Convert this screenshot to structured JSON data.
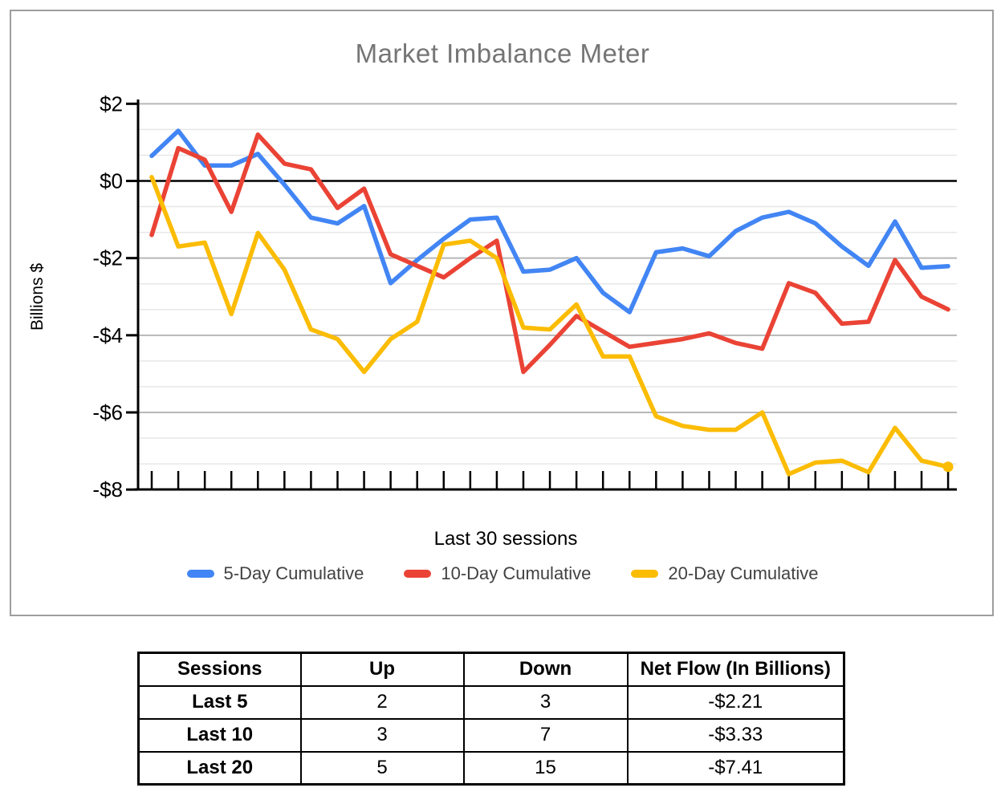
{
  "chart": {
    "title": "Market Imbalance Meter",
    "ylabel": "Billions $",
    "xlabel": "Last 30 sessions"
  },
  "chart_data": {
    "type": "line",
    "title": "Market Imbalance Meter",
    "xlabel": "Last 30 sessions",
    "ylabel": "Billions $",
    "ylim": [
      -8,
      2
    ],
    "y_ticks": [
      {
        "label": "$2",
        "value": 2
      },
      {
        "label": "$0",
        "value": 0
      },
      {
        "label": "-$2",
        "value": -2
      },
      {
        "label": "-$4",
        "value": -4
      },
      {
        "label": "-$6",
        "value": -6
      },
      {
        "label": "-$8",
        "value": -8
      }
    ],
    "grid": {
      "major_step": 2,
      "minor_step": 0.6667,
      "major_color": "#b7b7b7",
      "minor_color": "#e7e7e7",
      "zero_line_color": "#000000"
    },
    "legend_position": "bottom",
    "x_point_count": 31,
    "series": [
      {
        "name": "5-Day Cumulative",
        "color": "#4285F4",
        "end_dot": false,
        "values": [
          0.65,
          1.3,
          0.4,
          0.4,
          0.7,
          -0.1,
          -0.95,
          -1.1,
          -0.65,
          -2.65,
          -2.05,
          -1.5,
          -1.0,
          -0.95,
          -2.35,
          -2.3,
          -2.0,
          -2.9,
          -3.4,
          -1.85,
          -1.75,
          -1.95,
          -1.3,
          -0.95,
          -0.8,
          -1.1,
          -1.7,
          -2.2,
          -1.05,
          -2.25,
          -2.21
        ]
      },
      {
        "name": "10-Day Cumulative",
        "color": "#EA4335",
        "end_dot": false,
        "values": [
          -1.4,
          0.85,
          0.55,
          -0.8,
          1.2,
          0.45,
          0.3,
          -0.7,
          -0.2,
          -1.9,
          -2.2,
          -2.5,
          -2.0,
          -1.55,
          -4.95,
          -4.25,
          -3.5,
          -3.9,
          -4.3,
          -4.2,
          -4.1,
          -3.95,
          -4.2,
          -4.35,
          -2.65,
          -2.9,
          -3.7,
          -3.65,
          -2.05,
          -3.0,
          -3.33
        ]
      },
      {
        "name": "20-Day Cumulative",
        "color": "#FBBC04",
        "end_dot": true,
        "values": [
          0.1,
          -1.7,
          -1.6,
          -3.45,
          -1.35,
          -2.3,
          -3.85,
          -4.1,
          -4.95,
          -4.1,
          -3.65,
          -1.65,
          -1.55,
          -2.0,
          -3.8,
          -3.85,
          -3.2,
          -4.55,
          -4.55,
          -6.1,
          -6.35,
          -6.45,
          -6.45,
          -6.0,
          -7.6,
          -7.3,
          -7.25,
          -7.55,
          -6.4,
          -7.25,
          -7.41
        ]
      }
    ]
  },
  "table": {
    "headers": [
      "Sessions",
      "Up",
      "Down",
      "Net Flow (In Billions)"
    ],
    "rows": [
      [
        "Last 5",
        "2",
        "3",
        "-$2.21"
      ],
      [
        "Last 10",
        "3",
        "7",
        "-$3.33"
      ],
      [
        "Last 20",
        "5",
        "15",
        "-$7.41"
      ]
    ]
  }
}
